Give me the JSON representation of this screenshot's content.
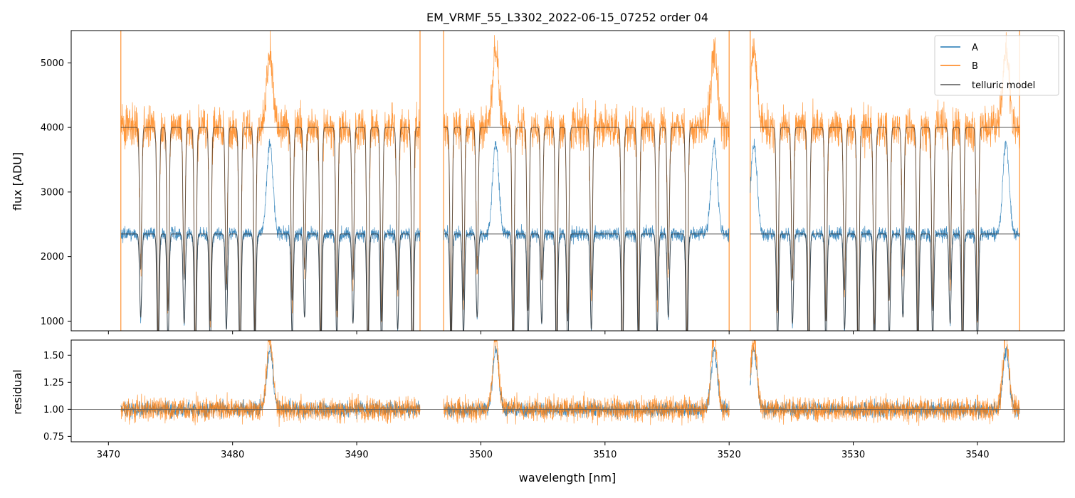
{
  "chart_data": [
    {
      "type": "line",
      "panel": "main",
      "title": "EM_VRMF_55_L3302_2022-06-15_07252  order 04",
      "xlabel": "",
      "ylabel": "flux [ADU]",
      "xlim": [
        3467,
        3547
      ],
      "ylim": [
        850,
        5500
      ],
      "x_ticks": [
        3470,
        3480,
        3490,
        3500,
        3510,
        3520,
        3530,
        3540
      ],
      "y_ticks": [
        1000,
        2000,
        3000,
        4000,
        5000
      ],
      "y_tick_labels": [
        "1000",
        "2000",
        "3000",
        "4000",
        "5000"
      ],
      "legend_position": "upper-right",
      "segments": [
        [
          3471.0,
          3495.1
        ],
        [
          3497.0,
          3520.0
        ],
        [
          3521.7,
          3543.4
        ]
      ],
      "series": [
        {
          "name": "A",
          "color": "#1f77b4",
          "baseline": 2350,
          "noise": 220
        },
        {
          "name": "B",
          "color": "#ff7f0e",
          "baseline": 4000,
          "noise": 650
        },
        {
          "name": "telluric model",
          "color": "#444444",
          "baseline": "scaled to A and B"
        }
      ],
      "emission_features": [
        3483.0,
        3501.2,
        3518.8,
        3522.0,
        3542.3
      ],
      "absorption_lines": [
        3472.6,
        3474.0,
        3474.8,
        3476.1,
        3477.0,
        3478.2,
        3479.5,
        3480.6,
        3481.8,
        3484.8,
        3485.8,
        3487.1,
        3488.4,
        3489.7,
        3490.9,
        3492.0,
        3493.3,
        3494.5,
        3497.6,
        3498.6,
        3499.7,
        3502.6,
        3503.8,
        3504.9,
        3506.1,
        3507.0,
        3508.9,
        3511.4,
        3512.7,
        3514.2,
        3515.1,
        3516.6,
        3523.9,
        3525.1,
        3526.4,
        3527.8,
        3529.3,
        3530.4,
        3531.7,
        3532.9,
        3534.0,
        3535.2,
        3536.4,
        3537.8,
        3538.8,
        3540.0
      ]
    },
    {
      "type": "line",
      "panel": "residual",
      "title": "",
      "xlabel": "wavelength [nm]",
      "ylabel": "residual",
      "xlim": [
        3467,
        3547
      ],
      "ylim": [
        0.7,
        1.64
      ],
      "x_ticks": [
        3470,
        3480,
        3490,
        3500,
        3510,
        3520,
        3530,
        3540
      ],
      "x_tick_labels": [
        "3470",
        "3480",
        "3490",
        "3500",
        "3510",
        "3520",
        "3530",
        "3540"
      ],
      "y_ticks": [
        0.75,
        1.0,
        1.25,
        1.5
      ],
      "y_tick_labels": [
        "0.75",
        "1.00",
        "1.25",
        "1.50"
      ],
      "reference_line": 1.0,
      "series": [
        {
          "name": "A",
          "color": "#1f77b4",
          "mean": 1.0,
          "noise": 0.08
        },
        {
          "name": "B",
          "color": "#ff7f0e",
          "mean": 1.0,
          "noise": 0.12
        }
      ]
    }
  ],
  "legend": {
    "items": [
      {
        "label": "A",
        "color": "#1f77b4"
      },
      {
        "label": "B",
        "color": "#ff7f0e"
      },
      {
        "label": "telluric model",
        "color": "#555555"
      }
    ]
  }
}
